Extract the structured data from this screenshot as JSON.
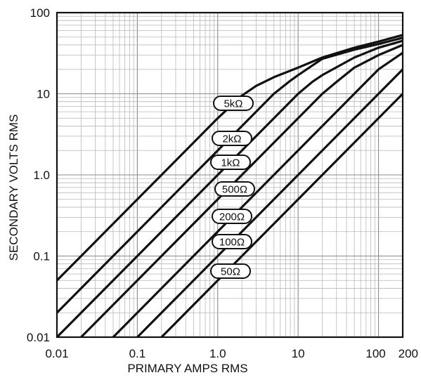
{
  "chart_data": {
    "type": "line",
    "xscale": "log",
    "yscale": "log",
    "xlim": [
      0.01,
      200
    ],
    "ylim": [
      0.01,
      100
    ],
    "xlabel": "PRIMARY AMPS RMS",
    "ylabel": "SECONDARY VOLTS RMS",
    "x_ticks": [
      0.01,
      0.1,
      1.0,
      10,
      100,
      200
    ],
    "x_tick_labels": [
      "0.01",
      "0.1",
      "1.0",
      "10",
      "100",
      "200"
    ],
    "y_ticks": [
      0.01,
      0.1,
      1.0,
      10,
      100
    ],
    "y_tick_labels": [
      "0.01",
      "0.1",
      "1.0",
      "10",
      "100"
    ],
    "grid": true,
    "series": [
      {
        "name": "5kΩ",
        "x": [
          0.01,
          0.1,
          1,
          2,
          3,
          5,
          10,
          20,
          50,
          100,
          200
        ],
        "y": [
          0.05,
          0.5,
          5,
          9.5,
          12.5,
          16,
          21,
          28,
          37,
          44,
          53
        ]
      },
      {
        "name": "2kΩ",
        "x": [
          0.01,
          0.1,
          1,
          5,
          8,
          10,
          20,
          50,
          100,
          200
        ],
        "y": [
          0.02,
          0.2,
          2,
          10,
          14.5,
          17,
          27,
          35,
          41,
          49
        ]
      },
      {
        "name": "1kΩ",
        "x": [
          0.01,
          0.1,
          1,
          10,
          15,
          20,
          50,
          100,
          200
        ],
        "y": [
          0.01,
          0.1,
          1,
          10,
          14,
          17,
          28,
          37,
          45
        ]
      },
      {
        "name": "500Ω",
        "x": [
          0.02,
          0.2,
          2,
          20,
          30,
          50,
          100,
          200
        ],
        "y": [
          0.01,
          0.1,
          1,
          10,
          14,
          21,
          30,
          40
        ]
      },
      {
        "name": "200Ω",
        "x": [
          0.05,
          0.5,
          5,
          50,
          70,
          100,
          200
        ],
        "y": [
          0.01,
          0.1,
          1,
          10,
          14,
          20,
          32
        ]
      },
      {
        "name": "100Ω",
        "x": [
          0.1,
          1,
          10,
          100,
          150,
          200
        ],
        "y": [
          0.01,
          0.1,
          1,
          10,
          15,
          20
        ]
      },
      {
        "name": "50Ω",
        "x": [
          0.2,
          2,
          20,
          200
        ],
        "y": [
          0.01,
          0.1,
          1,
          10
        ]
      }
    ]
  }
}
